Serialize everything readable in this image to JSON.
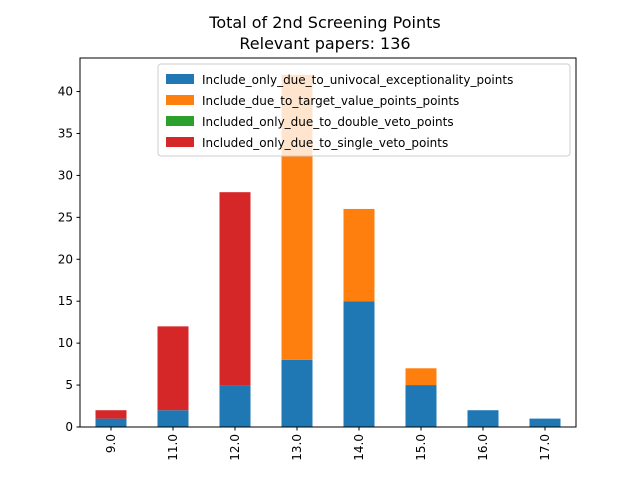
{
  "chart_data": {
    "type": "bar",
    "stacked": true,
    "title": "Total of 2nd Screening Points",
    "subtitle": "Relevant papers: 136",
    "xlabel": "",
    "ylabel": "",
    "categories": [
      "9.0",
      "11.0",
      "12.0",
      "13.0",
      "14.0",
      "15.0",
      "16.0",
      "17.0"
    ],
    "ylim": [
      0,
      44
    ],
    "yticks": [
      0,
      5,
      10,
      15,
      20,
      25,
      30,
      35,
      40
    ],
    "grid": false,
    "legend_position": "top-right",
    "series": [
      {
        "name": "Include_only_due_to_univocal_exceptionality_points",
        "color": "#1f77b4",
        "values": [
          1,
          2,
          5,
          8,
          15,
          5,
          2,
          1
        ]
      },
      {
        "name": "Include_due_to_target_value_points_points",
        "color": "#ff7f0e",
        "values": [
          0,
          0,
          0,
          34,
          11,
          2,
          0,
          0
        ]
      },
      {
        "name": "Included_only_due_to_double_veto_points",
        "color": "#2ca02c",
        "values": [
          0,
          0,
          0,
          0,
          0,
          0,
          0,
          0
        ]
      },
      {
        "name": "Included_only_due_to_single_veto_points",
        "color": "#d62728",
        "values": [
          1,
          10,
          23,
          0,
          0,
          0,
          0,
          0
        ]
      }
    ]
  }
}
